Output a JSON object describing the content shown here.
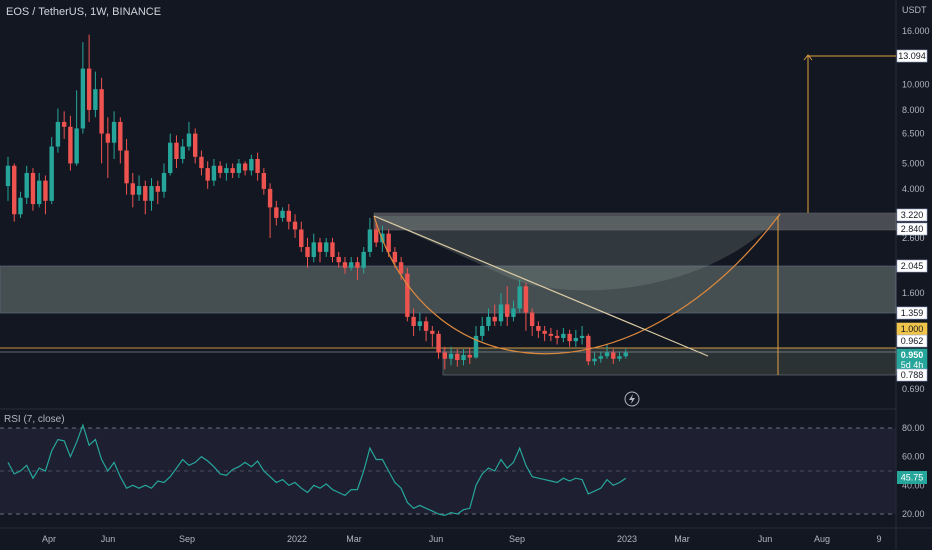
{
  "header": {
    "symbol_line": "EOS / TetherUS, 1W, BINANCE",
    "currency": "USDT"
  },
  "rsi": {
    "title": "RSI (7, close)",
    "ticks": [
      "80.00",
      "60.00",
      "40.00",
      "20.00"
    ],
    "current": "45.75"
  },
  "price_axis": {
    "ticks": [
      "16.000",
      "10.000",
      "8.000",
      "6.500",
      "5.000",
      "4.000",
      "2.600",
      "1.600",
      "0.690"
    ],
    "tags": [
      {
        "label": "13.094",
        "style": "outline"
      },
      {
        "label": "3.220",
        "style": "outline"
      },
      {
        "label": "2.840",
        "style": "outline"
      },
      {
        "label": "2.045",
        "style": "outline"
      },
      {
        "label": "1.359",
        "style": "outline"
      },
      {
        "label": "1.000",
        "style": "yellow"
      },
      {
        "label": "0.962",
        "style": "outline"
      },
      {
        "label": "0.950",
        "style": "green",
        "sub": "5d 4h"
      },
      {
        "label": "0.788",
        "style": "outline"
      }
    ]
  },
  "time_axis": {
    "ticks": [
      "Apr",
      "Jun",
      "Sep",
      "2022",
      "Mar",
      "Jun",
      "Sep",
      "2023",
      "Mar",
      "Jun",
      "Aug",
      "9"
    ]
  },
  "colors": {
    "background": "#131722",
    "up": "#26a69a",
    "down": "#ef5350",
    "rsi_line": "#26a69a",
    "cup": "#e08a3c",
    "trend": "#d9c9a3",
    "target": "#e0a040",
    "zone": "#7f8a86",
    "rsi_band": "#2a2640"
  },
  "icons": [
    "lightning-icon"
  ],
  "chart_data": {
    "type": "candlestick",
    "title": "EOS / TetherUS, 1W, BINANCE",
    "ylabel": "USDT",
    "y_scale": "log",
    "ylim": [
      0.62,
      19
    ],
    "last_price": 0.95,
    "countdown": "5d 4h",
    "levels": [
      13.094,
      3.22,
      2.84,
      2.045,
      1.359,
      1.0,
      0.962,
      0.95,
      0.788
    ],
    "zones": [
      {
        "from": 2.84,
        "to": 3.22
      },
      {
        "from": 1.359,
        "to": 2.045
      },
      {
        "from": 0.788,
        "to": 0.95
      }
    ],
    "candles": [
      [
        4.1,
        4.9,
        5.3,
        3.6
      ],
      [
        4.9,
        3.2,
        5.0,
        3.0
      ],
      [
        3.2,
        3.7,
        3.9,
        3.1
      ],
      [
        3.7,
        4.6,
        4.9,
        3.5
      ],
      [
        4.6,
        3.5,
        4.8,
        3.3
      ],
      [
        3.5,
        4.3,
        4.6,
        3.4
      ],
      [
        4.3,
        3.6,
        4.5,
        3.2
      ],
      [
        3.6,
        5.8,
        6.3,
        3.5
      ],
      [
        5.8,
        7.2,
        8.1,
        5.5
      ],
      [
        7.2,
        6.9,
        7.9,
        6.2
      ],
      [
        6.9,
        5.0,
        7.6,
        4.7
      ],
      [
        5.0,
        6.8,
        9.5,
        4.9
      ],
      [
        6.8,
        11.5,
        14.5,
        6.5
      ],
      [
        11.5,
        8.0,
        15.5,
        7.2
      ],
      [
        8.0,
        9.6,
        11.2,
        7.5
      ],
      [
        9.6,
        6.5,
        10.6,
        5.0
      ],
      [
        6.5,
        6.0,
        7.5,
        4.4
      ],
      [
        6.0,
        7.2,
        7.9,
        5.2
      ],
      [
        7.2,
        5.6,
        7.5,
        5.0
      ],
      [
        5.6,
        4.2,
        6.2,
        3.8
      ],
      [
        4.2,
        3.8,
        4.6,
        3.4
      ],
      [
        3.8,
        4.1,
        4.5,
        3.6
      ],
      [
        4.1,
        3.6,
        4.3,
        3.2
      ],
      [
        3.6,
        4.1,
        4.4,
        3.3
      ],
      [
        4.1,
        3.9,
        4.3,
        3.5
      ],
      [
        3.9,
        4.6,
        5.0,
        3.7
      ],
      [
        4.6,
        6.0,
        6.5,
        4.5
      ],
      [
        6.0,
        5.2,
        6.4,
        4.8
      ],
      [
        5.2,
        5.8,
        6.2,
        5.0
      ],
      [
        5.8,
        6.5,
        7.2,
        5.6
      ],
      [
        6.5,
        5.3,
        6.8,
        5.0
      ],
      [
        5.3,
        4.8,
        5.6,
        4.5
      ],
      [
        4.8,
        4.3,
        5.1,
        4.0
      ],
      [
        4.3,
        4.9,
        5.2,
        4.1
      ],
      [
        4.9,
        4.6,
        5.1,
        4.4
      ],
      [
        4.6,
        4.8,
        5.0,
        4.3
      ],
      [
        4.8,
        4.6,
        5.0,
        4.4
      ],
      [
        4.6,
        5.0,
        5.2,
        4.4
      ],
      [
        5.0,
        4.7,
        5.1,
        4.5
      ],
      [
        4.7,
        5.2,
        5.4,
        4.5
      ],
      [
        5.2,
        4.6,
        5.5,
        4.3
      ],
      [
        4.6,
        4.0,
        4.8,
        3.8
      ],
      [
        4.0,
        3.4,
        4.2,
        2.6
      ],
      [
        3.4,
        3.1,
        3.6,
        2.9
      ],
      [
        3.1,
        3.3,
        3.4,
        3.0
      ],
      [
        3.3,
        3.0,
        3.5,
        2.8
      ],
      [
        3.0,
        2.8,
        3.2,
        2.6
      ],
      [
        2.8,
        2.4,
        3.0,
        2.3
      ],
      [
        2.4,
        2.2,
        2.6,
        2.0
      ],
      [
        2.2,
        2.5,
        2.7,
        2.1
      ],
      [
        2.5,
        2.3,
        2.6,
        2.1
      ],
      [
        2.3,
        2.5,
        2.6,
        2.2
      ],
      [
        2.5,
        2.2,
        2.6,
        2.1
      ],
      [
        2.2,
        2.1,
        2.3,
        2.0
      ],
      [
        2.1,
        2.0,
        2.2,
        1.9
      ],
      [
        2.0,
        2.1,
        2.2,
        1.95
      ],
      [
        2.1,
        2.0,
        2.2,
        1.8
      ],
      [
        2.0,
        2.3,
        2.4,
        1.9
      ],
      [
        2.3,
        2.8,
        3.1,
        2.2
      ],
      [
        2.8,
        2.5,
        3.0,
        2.4
      ],
      [
        2.5,
        2.7,
        2.9,
        2.3
      ],
      [
        2.7,
        2.3,
        2.8,
        2.2
      ],
      [
        2.3,
        2.1,
        2.4,
        2.0
      ],
      [
        2.1,
        1.9,
        2.2,
        1.8
      ],
      [
        1.9,
        1.3,
        2.0,
        1.25
      ],
      [
        1.3,
        1.2,
        1.4,
        1.1
      ],
      [
        1.2,
        1.25,
        1.35,
        1.15
      ],
      [
        1.25,
        1.15,
        1.3,
        1.05
      ],
      [
        1.15,
        1.12,
        1.2,
        1.0
      ],
      [
        1.12,
        0.95,
        1.15,
        0.9
      ],
      [
        0.95,
        0.9,
        1.0,
        0.82
      ],
      [
        0.9,
        0.94,
        1.0,
        0.85
      ],
      [
        0.94,
        0.89,
        0.98,
        0.84
      ],
      [
        0.89,
        0.93,
        0.98,
        0.85
      ],
      [
        0.93,
        0.91,
        0.99,
        0.86
      ],
      [
        0.91,
        1.1,
        1.2,
        0.9
      ],
      [
        1.1,
        1.2,
        1.3,
        1.05
      ],
      [
        1.2,
        1.3,
        1.4,
        1.15
      ],
      [
        1.3,
        1.25,
        1.45,
        1.2
      ],
      [
        1.25,
        1.45,
        1.6,
        1.2
      ],
      [
        1.45,
        1.3,
        1.7,
        1.2
      ],
      [
        1.3,
        1.4,
        1.5,
        1.25
      ],
      [
        1.4,
        1.7,
        1.8,
        1.35
      ],
      [
        1.7,
        1.35,
        1.75,
        1.15
      ],
      [
        1.35,
        1.2,
        1.4,
        1.1
      ],
      [
        1.2,
        1.15,
        1.25,
        1.08
      ],
      [
        1.15,
        1.12,
        1.2,
        1.05
      ],
      [
        1.12,
        1.1,
        1.18,
        1.05
      ],
      [
        1.1,
        1.08,
        1.16,
        1.02
      ],
      [
        1.08,
        1.12,
        1.18,
        1.04
      ],
      [
        1.12,
        1.05,
        1.16,
        1.0
      ],
      [
        1.05,
        1.08,
        1.16,
        1.0
      ],
      [
        1.08,
        1.1,
        1.2,
        1.02
      ],
      [
        1.1,
        0.88,
        1.12,
        0.85
      ],
      [
        0.88,
        0.9,
        0.95,
        0.85
      ],
      [
        0.9,
        0.92,
        0.96,
        0.87
      ],
      [
        0.92,
        0.95,
        1.02,
        0.9
      ],
      [
        0.95,
        0.9,
        0.98,
        0.86
      ],
      [
        0.9,
        0.92,
        0.96,
        0.88
      ],
      [
        0.92,
        0.95,
        0.98,
        0.9
      ]
    ],
    "rsi_values": [
      56,
      48,
      50,
      54,
      45,
      52,
      50,
      64,
      72,
      71,
      60,
      70,
      82,
      68,
      72,
      58,
      50,
      56,
      46,
      38,
      40,
      38,
      40,
      38,
      43,
      42,
      46,
      52,
      58,
      54,
      56,
      60,
      57,
      53,
      48,
      47,
      51,
      53,
      56,
      53,
      57,
      50,
      46,
      42,
      44,
      40,
      42,
      38,
      35,
      40,
      38,
      41,
      37,
      35,
      33,
      37,
      37,
      50,
      66,
      58,
      58,
      50,
      42,
      38,
      28,
      24,
      26,
      24,
      22,
      20,
      19,
      21,
      20,
      23,
      24,
      40,
      48,
      52,
      50,
      58,
      52,
      56,
      66,
      54,
      46,
      45,
      44,
      43,
      42,
      45,
      43,
      45,
      44,
      34,
      36,
      38,
      44,
      40,
      42,
      45
    ]
  }
}
